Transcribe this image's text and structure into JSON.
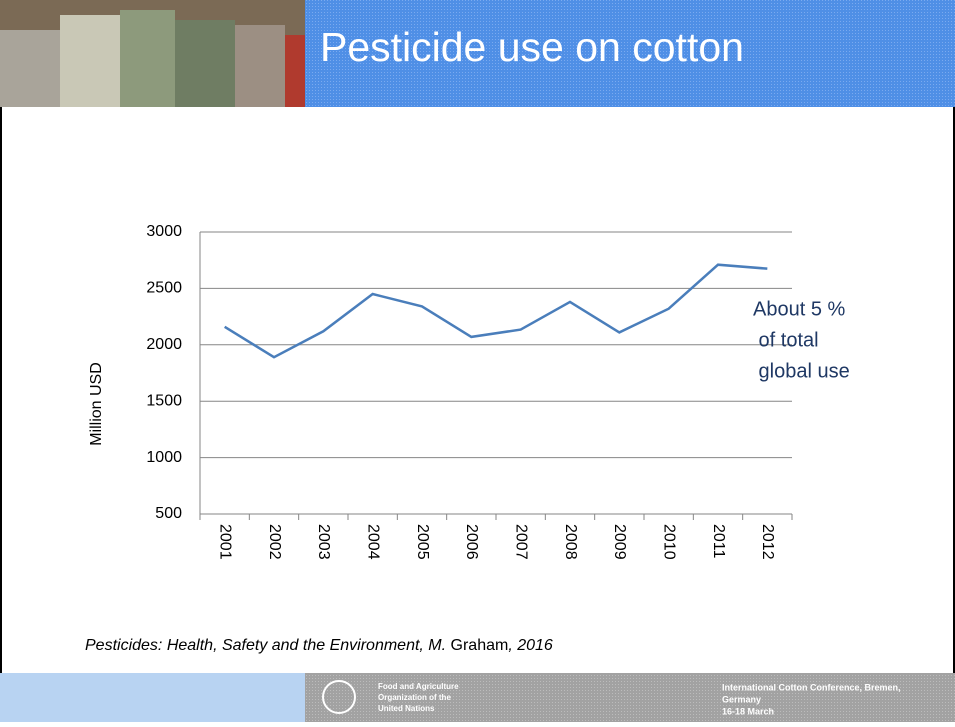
{
  "header": {
    "title": "Pesticide use on cotton"
  },
  "chart_data": {
    "type": "line",
    "y_label": "Million USD",
    "categories": [
      "2001",
      "2002",
      "2003",
      "2004",
      "2005",
      "2006",
      "2007",
      "2008",
      "2009",
      "2010",
      "2011",
      "2012"
    ],
    "series": [
      {
        "name": "Million USD",
        "color": "#4a7ebb",
        "values": [
          2160,
          1890,
          2120,
          2450,
          2340,
          2070,
          2135,
          2380,
          2110,
          2320,
          2710,
          2675
        ]
      }
    ],
    "ylim": [
      500,
      3000
    ],
    "yticks": [
      500,
      1000,
      1500,
      2000,
      2500,
      3000
    ],
    "grid": true,
    "annotation": [
      "About 5 %",
      " of total",
      " global use"
    ]
  },
  "citation": [
    "Pesticides: Health, Safety and the Environment, M.",
    "Graham",
    ", 2016"
  ],
  "footer": {
    "organization": [
      "Food and Agriculture",
      "Organization of the",
      "United Nations"
    ],
    "event": [
      "International Cotton Conference, Bremen,",
      "Germany",
      "16-18 March"
    ]
  }
}
